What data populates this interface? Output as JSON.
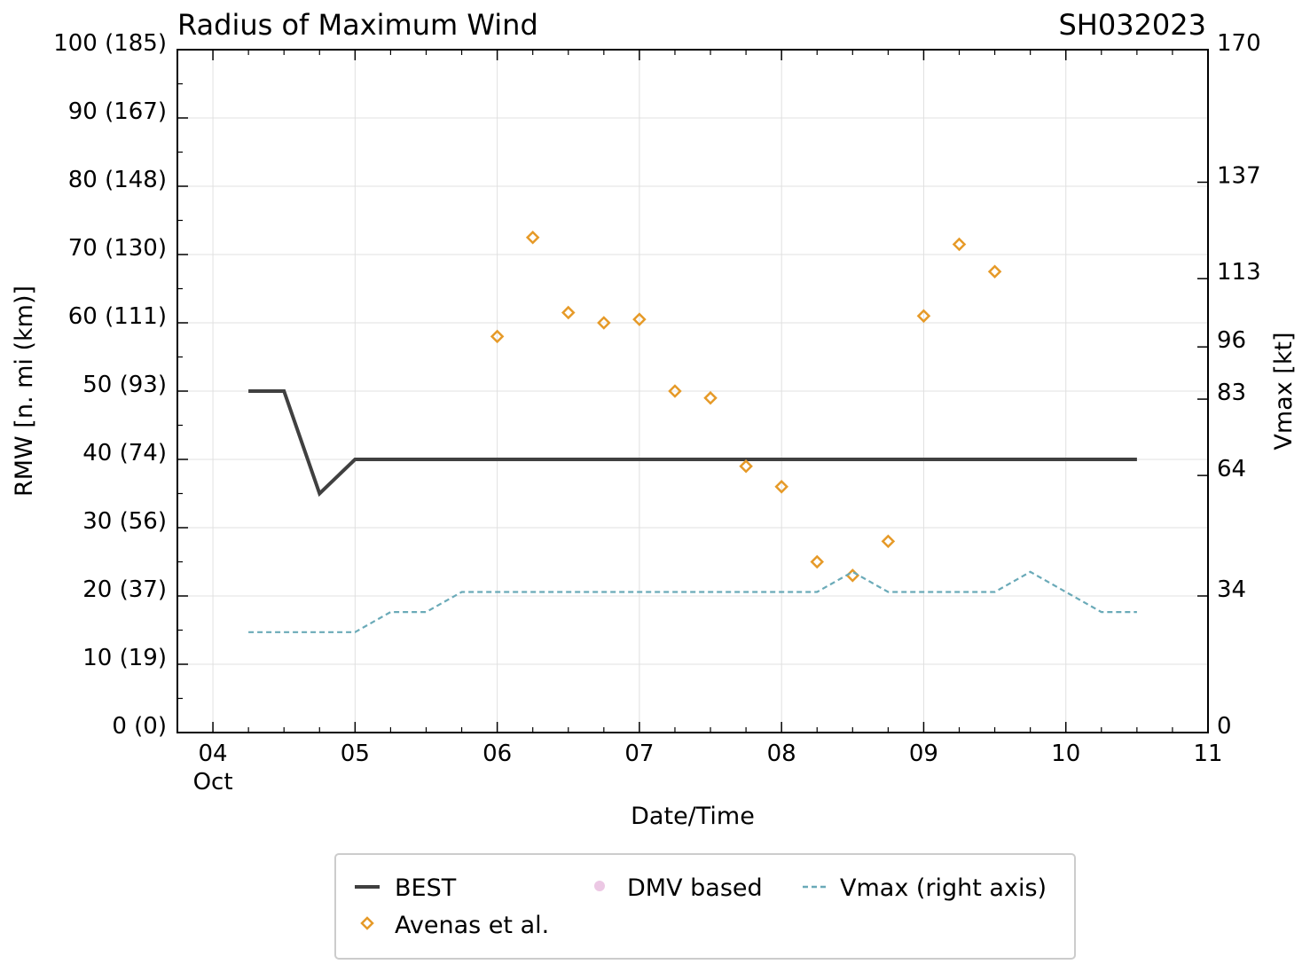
{
  "chart_data": {
    "type": "line",
    "title": "Radius of Maximum Wind",
    "storm_id": "SH032023",
    "xlabel": "Date/Time",
    "ylabel": "RMW [n. mi (km)]",
    "y2label": "Vmax [kt]",
    "xlim": [
      3.75,
      11
    ],
    "ylim": [
      0,
      100
    ],
    "y2lim": [
      0,
      170
    ],
    "x_ticks": [
      {
        "value": 4,
        "label": "04",
        "sublabel": "Oct"
      },
      {
        "value": 5,
        "label": "05"
      },
      {
        "value": 6,
        "label": "06"
      },
      {
        "value": 7,
        "label": "07"
      },
      {
        "value": 8,
        "label": "08"
      },
      {
        "value": 9,
        "label": "09"
      },
      {
        "value": 10,
        "label": "10"
      },
      {
        "value": 11,
        "label": "11"
      }
    ],
    "y_ticks": [
      {
        "value": 0,
        "label": "0 (0)"
      },
      {
        "value": 10,
        "label": "10 (19)"
      },
      {
        "value": 20,
        "label": "20 (37)"
      },
      {
        "value": 30,
        "label": "30 (56)"
      },
      {
        "value": 40,
        "label": "40 (74)"
      },
      {
        "value": 50,
        "label": "50 (93)"
      },
      {
        "value": 60,
        "label": "60 (111)"
      },
      {
        "value": 70,
        "label": "70 (130)"
      },
      {
        "value": 80,
        "label": "80 (148)"
      },
      {
        "value": 90,
        "label": "90 (167)"
      },
      {
        "value": 100,
        "label": "100 (185)"
      }
    ],
    "y2_ticks": [
      {
        "value": 0,
        "label": "0"
      },
      {
        "value": 34,
        "label": "34"
      },
      {
        "value": 64,
        "label": "64"
      },
      {
        "value": 83,
        "label": "83"
      },
      {
        "value": 96,
        "label": "96"
      },
      {
        "value": 113,
        "label": "113"
      },
      {
        "value": 137,
        "label": "137"
      },
      {
        "value": 170,
        "label": "170"
      }
    ],
    "series": [
      {
        "name": "BEST",
        "kind": "line",
        "axis": "left",
        "color": "#404040",
        "x": [
          4.25,
          4.5,
          4.75,
          5.0,
          10.5
        ],
        "y": [
          50,
          50,
          35,
          40,
          40
        ]
      },
      {
        "name": "Avenas et al.",
        "kind": "scatter",
        "axis": "left",
        "color": "#e69a28",
        "x": [
          6.0,
          6.25,
          6.5,
          6.75,
          7.0,
          7.25,
          7.5,
          7.75,
          8.0,
          8.25,
          8.5,
          8.75,
          9.0,
          9.25,
          9.5
        ],
        "y": [
          58,
          72.5,
          61.5,
          60,
          60.5,
          50,
          49,
          39,
          36,
          25,
          23,
          28,
          61,
          71.5,
          67.5
        ]
      },
      {
        "name": "DMV based",
        "kind": "scatter",
        "axis": "left",
        "color": "#ecc8e4",
        "x": [],
        "y": []
      },
      {
        "name": "Vmax (right axis)",
        "kind": "dashed",
        "axis": "right",
        "color": "#6aaab8",
        "x": [
          4.25,
          5.0,
          5.25,
          5.5,
          5.75,
          8.25,
          8.5,
          8.75,
          9.5,
          9.75,
          10.0,
          10.25,
          10.5
        ],
        "y": [
          25,
          25,
          30,
          30,
          35,
          35,
          40,
          35,
          35,
          40,
          35,
          30,
          30
        ]
      }
    ],
    "legend": {
      "position": "bottom-center",
      "entries": [
        "BEST",
        "DMV based",
        "Vmax (right axis)",
        "Avenas et al."
      ]
    }
  }
}
